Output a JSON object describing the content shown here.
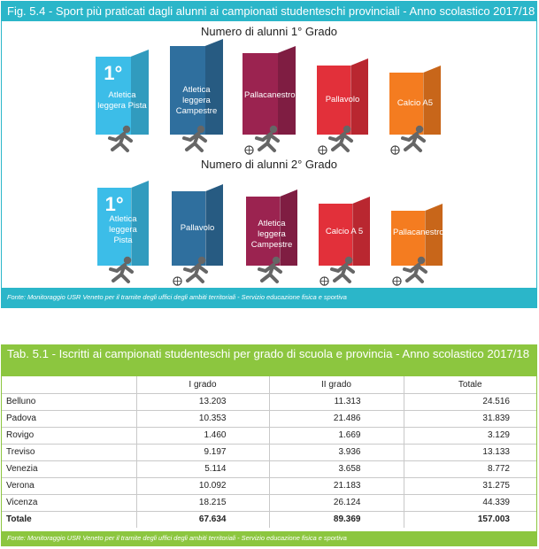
{
  "figure": {
    "title": "Fig. 5.4 - Sport più praticati dagli alunni ai campionati studenteschi provinciali - Anno scolastico 2017/18",
    "row1_title": "Numero di alunni 1° Grado",
    "row2_title": "Numero di alunni 2° Grado",
    "rank_label": "1°",
    "row1": [
      {
        "label": "Atletica leggera Pista",
        "color": "#3cbde8",
        "icon": "runner-icon"
      },
      {
        "label": "Atletica leggera Campestre",
        "color": "#2f6f9e",
        "icon": "cross-country-runner-icon"
      },
      {
        "label": "Pallacanestro",
        "color": "#9b2350",
        "icon": "basketball-player-icon"
      },
      {
        "label": "Pallavolo",
        "color": "#e2303a",
        "icon": "volleyball-player-icon"
      },
      {
        "label": "Calcio A5",
        "color": "#f47c20",
        "icon": "football-player-icon"
      }
    ],
    "row2": [
      {
        "label": "Atletica leggera Pista",
        "color": "#3cbde8",
        "icon": "runner-icon"
      },
      {
        "label": "Pallavolo",
        "color": "#2f6f9e",
        "icon": "volleyball-player-icon"
      },
      {
        "label": "Atletica leggera Campestre",
        "color": "#9b2350",
        "icon": "cross-country-runner-icon"
      },
      {
        "label": "Calcio A 5",
        "color": "#e2303a",
        "icon": "football-player-icon"
      },
      {
        "label": "Pallacanestro",
        "color": "#f47c20",
        "icon": "basketball-player-icon"
      }
    ],
    "source": "Fonte: Monitoraggio USR Veneto per il tramite degli uffici degli ambiti territoriali - Servizio educazione fisica e sportiva"
  },
  "table": {
    "title": "Tab. 5.1 - Iscritti ai campionati studenteschi per grado di scuola e provincia - Anno scolastico 2017/18",
    "headers": [
      "",
      "I grado",
      "II grado",
      "Totale"
    ],
    "rows": [
      [
        "Belluno",
        "13.203",
        "11.313",
        "24.516"
      ],
      [
        "Padova",
        "10.353",
        "21.486",
        "31.839"
      ],
      [
        "Rovigo",
        "1.460",
        "1.669",
        "3.129"
      ],
      [
        "Treviso",
        "9.197",
        "3.936",
        "13.133"
      ],
      [
        "Venezia",
        "5.114",
        "3.658",
        "8.772"
      ],
      [
        "Verona",
        "10.092",
        "21.183",
        "31.275"
      ],
      [
        "Vicenza",
        "18.215",
        "26.124",
        "44.339"
      ]
    ],
    "total": [
      "Totale",
      "67.634",
      "89.369",
      "157.003"
    ],
    "source": "Fonte: Monitoraggio USR Veneto per il tramite degli uffici degli ambiti territoriali - Servizio educazione fisica e sportiva"
  }
}
